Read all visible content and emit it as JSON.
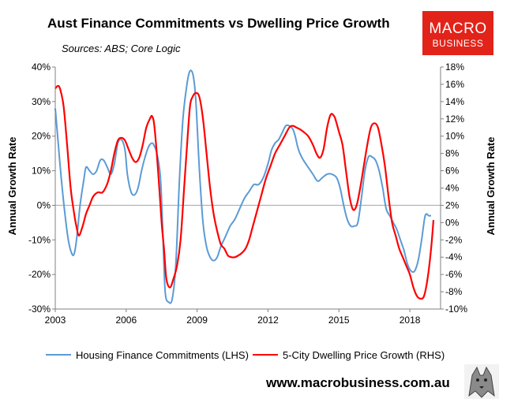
{
  "logo": {
    "line1": "MACRO",
    "line2": "BUSINESS",
    "color": "#e2231a"
  },
  "footer": {
    "website": "www.macrobusiness.com.au",
    "mascot_icon": "wolf-icon"
  },
  "chart_data": {
    "type": "line",
    "title": "Aust Finance Commitments vs Dwelling Price Growth",
    "subtitle": "Sources: ABS; Core Logic",
    "ylabel": "Annual Growth Rate",
    "y2label": "Annual Growth Rate",
    "xlim": [
      2003,
      2019.3
    ],
    "ylim": [
      -30,
      40
    ],
    "y2lim": [
      -10,
      18
    ],
    "x_ticks": [
      2003,
      2006,
      2009,
      2012,
      2015,
      2018
    ],
    "x_tick_labels": [
      "2003",
      "2006",
      "2009",
      "2012",
      "2015",
      "2018"
    ],
    "y_ticks": [
      40,
      30,
      20,
      10,
      0,
      -10,
      -20,
      -30
    ],
    "y_tick_labels": [
      "40%",
      "30%",
      "20%",
      "10%",
      "0%",
      "-10%",
      "-20%",
      "-30%"
    ],
    "y2_ticks": [
      18,
      16,
      14,
      12,
      10,
      8,
      6,
      4,
      2,
      0,
      -2,
      -4,
      -6,
      -8,
      -10
    ],
    "y2_tick_labels": [
      "18%",
      "16%",
      "14%",
      "12%",
      "10%",
      "8%",
      "6%",
      "4%",
      "2%",
      "0%",
      "-2%",
      "-4%",
      "-6%",
      "-8%",
      "-10%"
    ],
    "series": [
      {
        "name": "Housing Finance Commitments (LHS)",
        "axis": "left",
        "color": "#5b9bd5",
        "x": [
          2003.0,
          2003.1,
          2003.25,
          2003.4,
          2003.55,
          2003.7,
          2003.8,
          2003.9,
          2004.05,
          2004.2,
          2004.3,
          2004.45,
          2004.6,
          2004.75,
          2004.9,
          2005.05,
          2005.2,
          2005.35,
          2005.5,
          2005.65,
          2005.8,
          2005.95,
          2006.05,
          2006.2,
          2006.35,
          2006.5,
          2006.65,
          2006.8,
          2006.95,
          2007.1,
          2007.2,
          2007.3,
          2007.45,
          2007.55,
          2007.65,
          2007.8,
          2007.95,
          2008.1,
          2008.25,
          2008.4,
          2008.55,
          2008.65,
          2008.75,
          2008.85,
          2008.95,
          2009.1,
          2009.25,
          2009.4,
          2009.55,
          2009.7,
          2009.85,
          2010.0,
          2010.2,
          2010.4,
          2010.6,
          2010.8,
          2011.0,
          2011.2,
          2011.4,
          2011.6,
          2011.8,
          2012.0,
          2012.15,
          2012.3,
          2012.45,
          2012.6,
          2012.75,
          2012.9,
          2013.05,
          2013.15,
          2013.25,
          2013.35,
          2013.5,
          2013.7,
          2013.9,
          2014.1,
          2014.3,
          2014.5,
          2014.7,
          2014.9,
          2015.05,
          2015.2,
          2015.35,
          2015.5,
          2015.65,
          2015.8,
          2015.95,
          2016.1,
          2016.25,
          2016.4,
          2016.55,
          2016.7,
          2016.85,
          2017.0,
          2017.15,
          2017.3,
          2017.45,
          2017.6,
          2017.75,
          2017.9,
          2018.05,
          2018.2,
          2018.35,
          2018.5,
          2018.65,
          2018.8,
          2018.9
        ],
        "values": [
          28,
          20,
          8,
          -2,
          -10,
          -14,
          -14,
          -10,
          0,
          7,
          11,
          10,
          9,
          10,
          13,
          13,
          11,
          9,
          12,
          18,
          19,
          16,
          9,
          4,
          3,
          5,
          10,
          14,
          17,
          18,
          17,
          15,
          8,
          -8,
          -25,
          -28,
          -27,
          -17,
          7,
          25,
          34,
          38,
          39,
          37,
          30,
          10,
          -5,
          -12,
          -15,
          -16,
          -15,
          -12,
          -9,
          -6,
          -4,
          -1,
          2,
          4,
          6,
          6,
          8,
          12,
          16,
          18,
          19,
          21,
          23,
          23,
          22,
          20,
          17,
          15,
          13,
          11,
          9,
          7,
          8,
          9,
          9,
          8,
          5,
          0,
          -4,
          -6,
          -6,
          -5,
          2,
          10,
          14,
          14,
          13,
          10,
          5,
          -1,
          -3,
          -5,
          -7,
          -10,
          -13,
          -17,
          -19,
          -19,
          -16,
          -10,
          -3,
          -3,
          -3
        ]
      },
      {
        "name": "5-City Dwelling Price Growth (RHS)",
        "axis": "right",
        "color": "#ff0000",
        "x": [
          2003.0,
          2003.1,
          2003.2,
          2003.35,
          2003.5,
          2003.65,
          2003.8,
          2003.9,
          2004.0,
          2004.15,
          2004.3,
          2004.45,
          2004.6,
          2004.8,
          2005.0,
          2005.2,
          2005.35,
          2005.5,
          2005.65,
          2005.8,
          2005.95,
          2006.1,
          2006.25,
          2006.4,
          2006.55,
          2006.7,
          2006.85,
          2007.0,
          2007.1,
          2007.2,
          2007.35,
          2007.5,
          2007.6,
          2007.7,
          2007.85,
          2008.0,
          2008.15,
          2008.3,
          2008.45,
          2008.6,
          2008.7,
          2008.8,
          2008.95,
          2009.1,
          2009.25,
          2009.4,
          2009.55,
          2009.7,
          2009.85,
          2010.0,
          2010.15,
          2010.3,
          2010.45,
          2010.6,
          2010.75,
          2010.9,
          2011.05,
          2011.2,
          2011.35,
          2011.5,
          2011.7,
          2011.9,
          2012.1,
          2012.3,
          2012.5,
          2012.7,
          2012.9,
          2013.05,
          2013.2,
          2013.35,
          2013.5,
          2013.7,
          2013.9,
          2014.05,
          2014.2,
          2014.35,
          2014.5,
          2014.65,
          2014.8,
          2014.9,
          2015.0,
          2015.15,
          2015.3,
          2015.45,
          2015.6,
          2015.75,
          2015.9,
          2016.05,
          2016.2,
          2016.35,
          2016.5,
          2016.65,
          2016.8,
          2016.95,
          2017.1,
          2017.25,
          2017.4,
          2017.55,
          2017.7,
          2017.85,
          2018.0,
          2018.15,
          2018.3,
          2018.45,
          2018.6,
          2018.75,
          2018.9,
          2019.0
        ],
        "values": [
          15.5,
          15.8,
          15.5,
          13.5,
          9,
          4,
          1,
          -0.5,
          -1.5,
          -0.5,
          1,
          2,
          3,
          3.5,
          3.5,
          4.5,
          6,
          8,
          9.5,
          9.8,
          9.5,
          8.5,
          7.5,
          7,
          7.5,
          9,
          11,
          12,
          12.3,
          11,
          6,
          0,
          -3,
          -6.5,
          -7.5,
          -6.5,
          -5,
          -2,
          4,
          10,
          13.5,
          14.5,
          15,
          14.5,
          12,
          8,
          4,
          1,
          -1,
          -2.5,
          -3,
          -3.8,
          -4,
          -4,
          -3.8,
          -3.5,
          -3,
          -2,
          -0.5,
          1,
          3,
          5,
          6.5,
          8,
          9,
          10,
          11,
          11.2,
          11,
          10.8,
          10.5,
          10,
          9,
          8,
          7.5,
          8.5,
          11,
          12.5,
          12.3,
          11.5,
          10.5,
          9,
          6,
          3,
          1.5,
          2,
          4,
          6.5,
          9,
          11,
          11.5,
          11,
          9,
          6.5,
          3,
          0,
          -1.5,
          -3,
          -4,
          -5,
          -6,
          -7.5,
          -8.5,
          -8.8,
          -8.5,
          -6.5,
          -3,
          0.3
        ]
      }
    ],
    "legend": [
      "Housing Finance Commitments (LHS)",
      "5-City Dwelling Price Growth (RHS)"
    ]
  }
}
